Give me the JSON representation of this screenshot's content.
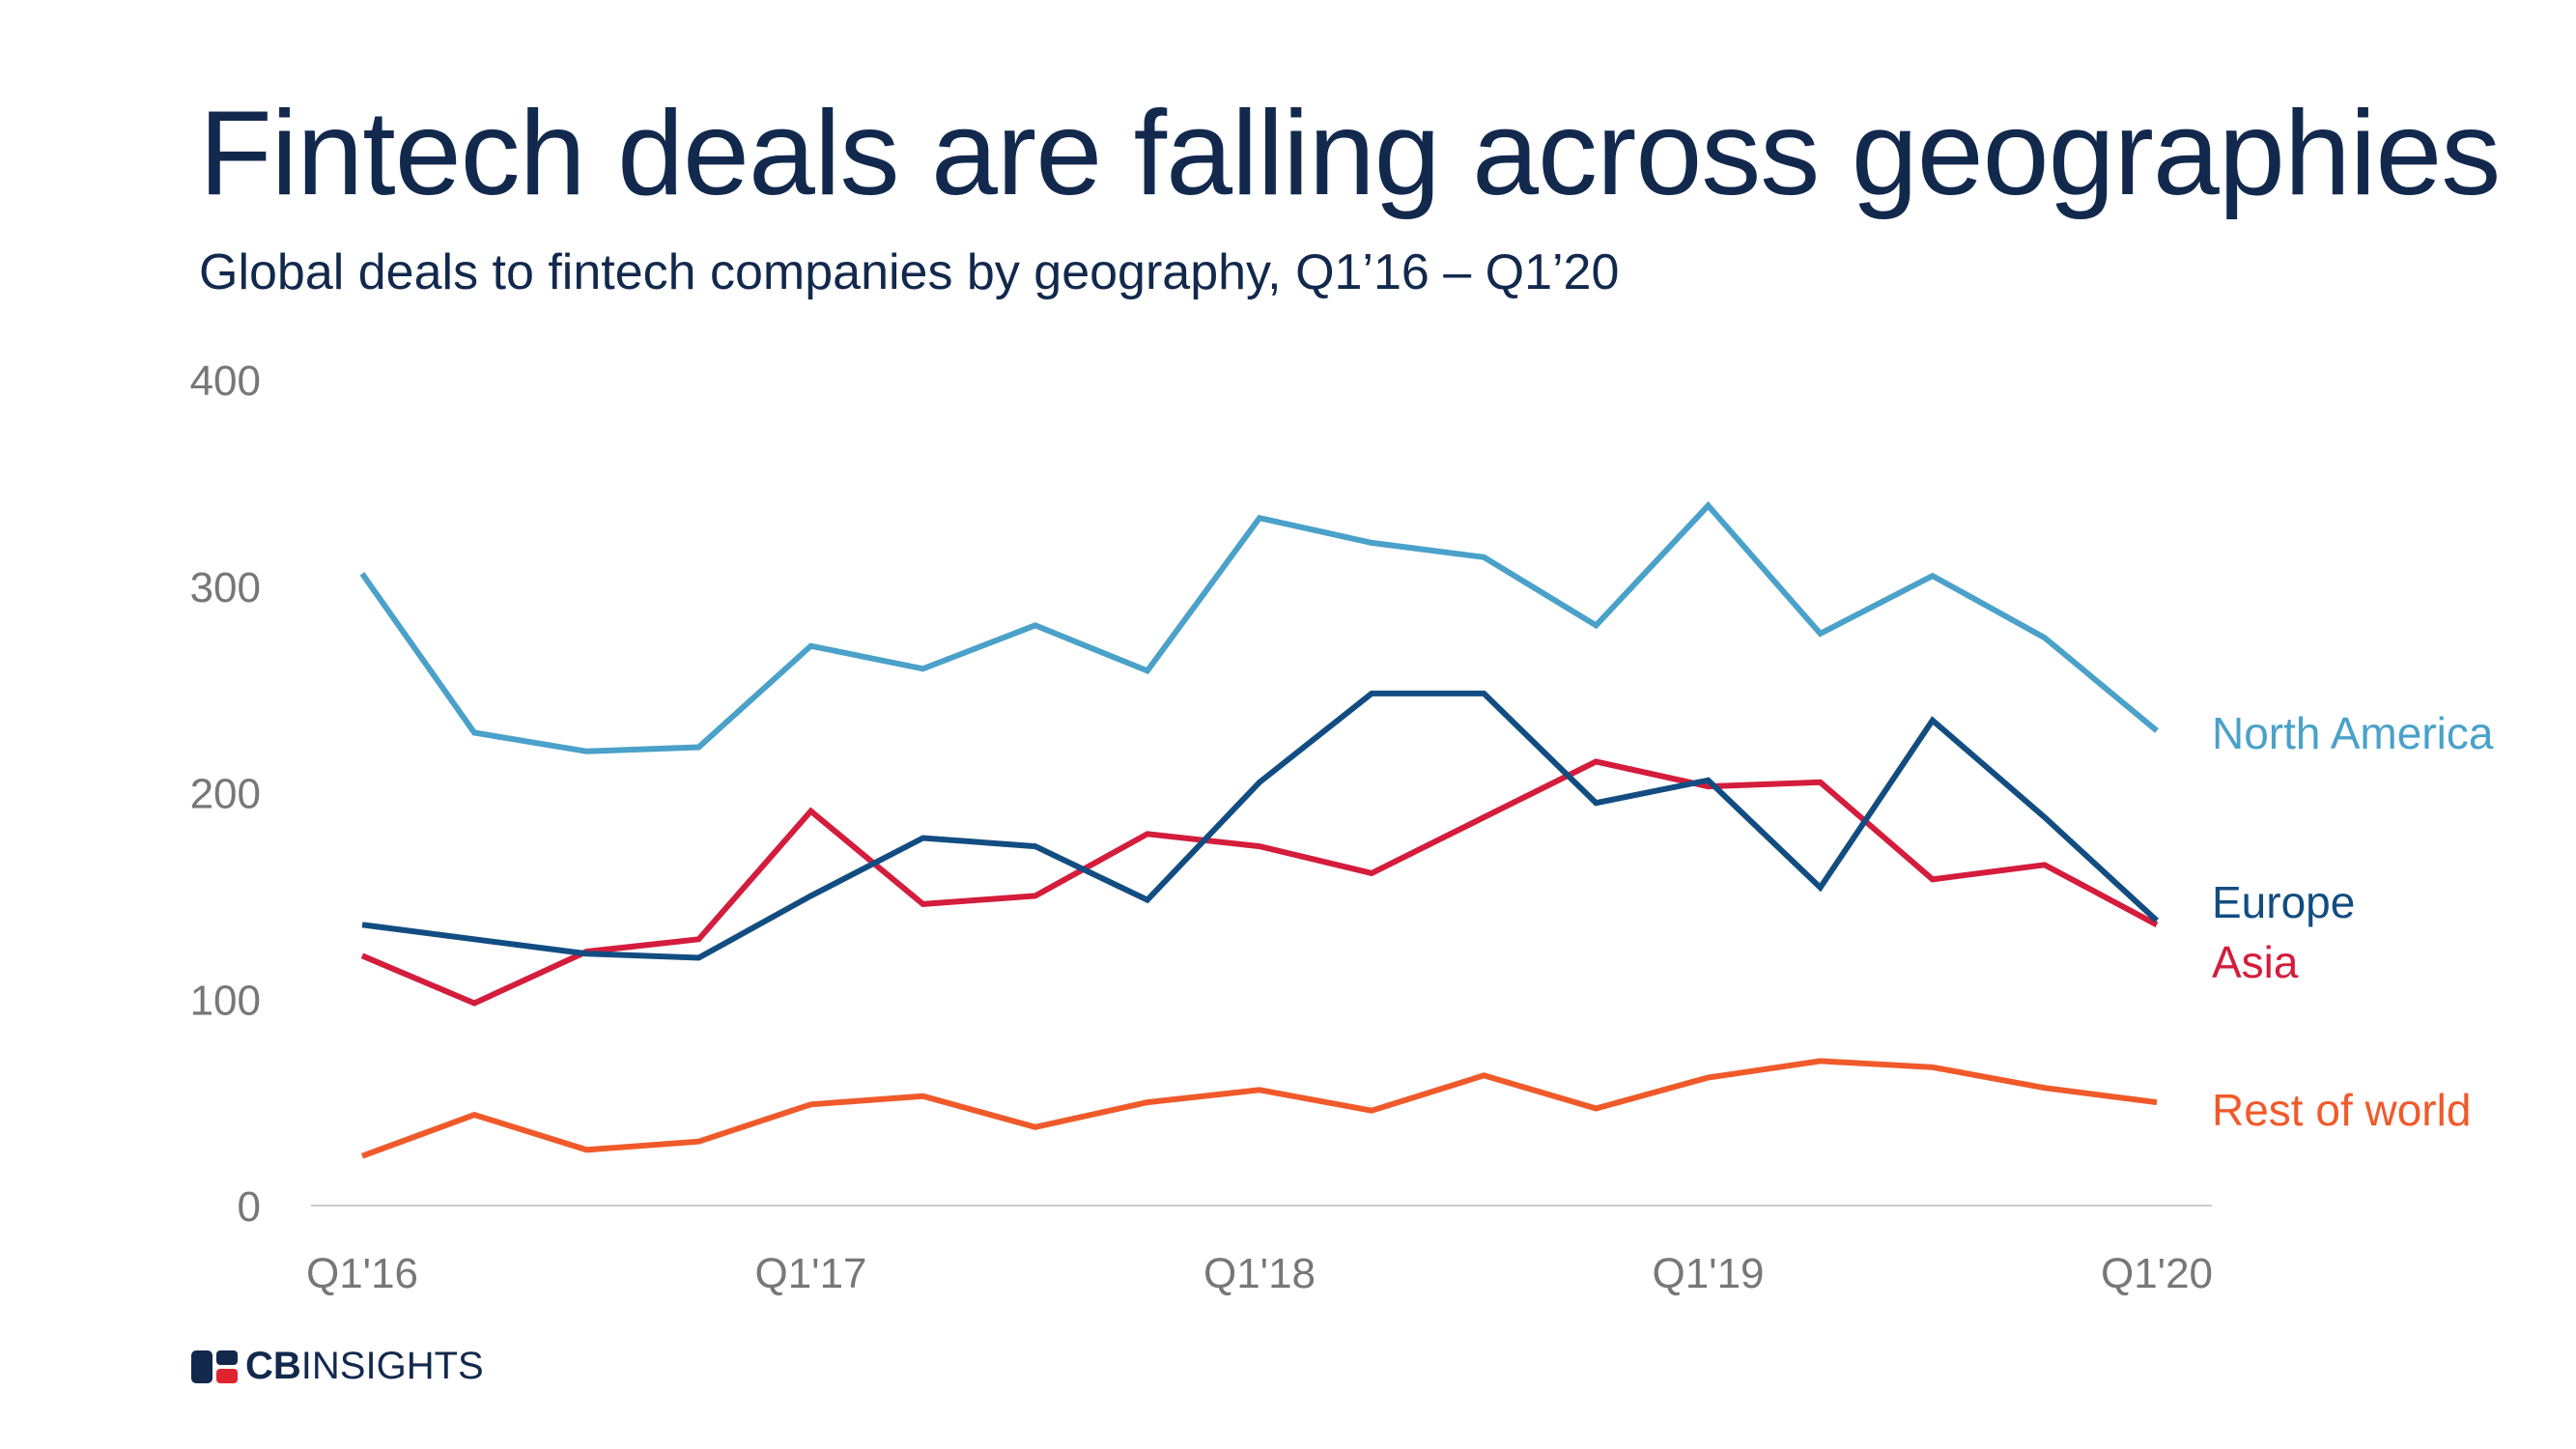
{
  "title": "Fintech deals are falling across geographies",
  "subtitle": "Global deals to fintech companies by geography, Q1’16 – Q1’20",
  "brand": {
    "bold": "CB",
    "rest": "INSIGHTS"
  },
  "colors": {
    "north_america": "#4aa1c9",
    "europe": "#124d82",
    "asia": "#d41c3c",
    "rest_of_world": "#f05a2a",
    "axis": "#cccccc",
    "logo_navy": "#12294d",
    "logo_red": "#e0242e"
  },
  "chart_data": {
    "type": "line",
    "title": "Fintech deals are falling across geographies",
    "subtitle": "Global deals to fintech companies by geography, Q1’16 – Q1’20",
    "xlabel": "",
    "ylabel": "",
    "ylim": [
      0,
      400
    ],
    "yticks": [
      0,
      100,
      200,
      300,
      400
    ],
    "grid": false,
    "x": [
      "Q1'16",
      "Q2'16",
      "Q3'16",
      "Q4'16",
      "Q1'17",
      "Q2'17",
      "Q3'17",
      "Q4'17",
      "Q1'18",
      "Q2'18",
      "Q3'18",
      "Q4'18",
      "Q1'19",
      "Q2'19",
      "Q3'19",
      "Q4'19",
      "Q1'20"
    ],
    "xtick_labels": [
      "Q1'16",
      "Q1'17",
      "Q1'18",
      "Q1'19",
      "Q1'20"
    ],
    "series": [
      {
        "key": "north_america",
        "name": "North America",
        "values": [
          306,
          229,
          220,
          222,
          271,
          260,
          281,
          259,
          333,
          321,
          314,
          281,
          339,
          277,
          305,
          275,
          230
        ]
      },
      {
        "key": "europe",
        "name": "Europe",
        "values": [
          136,
          129,
          122,
          120,
          150,
          178,
          174,
          148,
          205,
          248,
          248,
          195,
          206,
          154,
          235,
          188,
          138
        ]
      },
      {
        "key": "asia",
        "name": "Asia",
        "values": [
          121,
          98,
          123,
          129,
          191,
          146,
          150,
          180,
          174,
          161,
          188,
          215,
          203,
          205,
          158,
          165,
          136
        ]
      },
      {
        "key": "rest_of_world",
        "name": "Rest of world",
        "values": [
          24,
          44,
          27,
          31,
          49,
          53,
          38,
          50,
          56,
          46,
          63,
          47,
          62,
          70,
          67,
          57,
          50
        ]
      }
    ]
  }
}
